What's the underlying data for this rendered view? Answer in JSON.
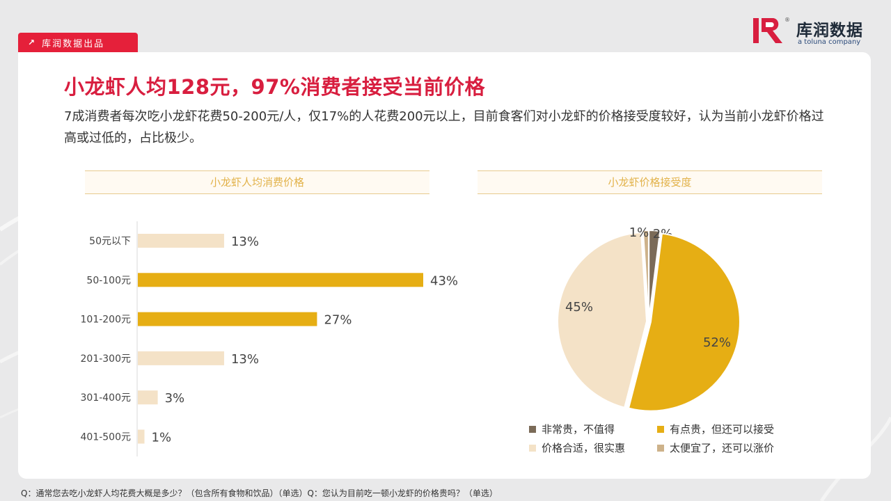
{
  "tag": {
    "label": "库润数据出品"
  },
  "logo": {
    "brand": "库润数据",
    "sub": "a toluna company",
    "reg": "®"
  },
  "title": "小龙虾人均128元，97%消费者接受当前价格",
  "description": "7成消费者每次吃小龙虾花费50-200元/人，仅17%的人花费200元以上，目前食客们对小龙虾的价格接受度较好，认为当前小龙虾价格过高或过低的，占比极少。",
  "footer": "Q：通常您去吃小龙虾人均花费大概是多少？（包含所有食物和饮品）（单选）Q：您认为目前吃一顿小龙虾的价格贵吗？（单选）",
  "colors": {
    "accent": "#d81e3f",
    "gold": "#e6ae14",
    "cream": "#f4e2c7",
    "dark": "#7b6b58",
    "tan": "#cdb28a"
  },
  "chart_data": [
    {
      "type": "bar",
      "title": "小龙虾人均消费价格",
      "orientation": "horizontal",
      "categories": [
        "50元以下",
        "50-100元",
        "101-200元",
        "201-300元",
        "301-400元",
        "401-500元"
      ],
      "values": [
        13,
        43,
        27,
        13,
        3,
        1
      ],
      "value_labels": [
        "13%",
        "43%",
        "27%",
        "13%",
        "3%",
        "1%"
      ],
      "colors": [
        "#f4e2c7",
        "#e6ae14",
        "#e6ae14",
        "#f4e2c7",
        "#f4e2c7",
        "#f4e2c7"
      ],
      "xlim": [
        0,
        43
      ]
    },
    {
      "type": "pie",
      "title": "小龙虾价格接受度",
      "labels": [
        "非常贵，不值得",
        "有点贵，但还可以接受",
        "价格合适，很实惠",
        "太便宜了，还可以涨价"
      ],
      "values": [
        2,
        52,
        45,
        1
      ],
      "value_labels": [
        "2%",
        "52%",
        "45%",
        "1%"
      ],
      "colors": [
        "#7b6b58",
        "#e6ae14",
        "#f4e2c7",
        "#cdb28a"
      ],
      "legend_position": "bottom"
    }
  ]
}
